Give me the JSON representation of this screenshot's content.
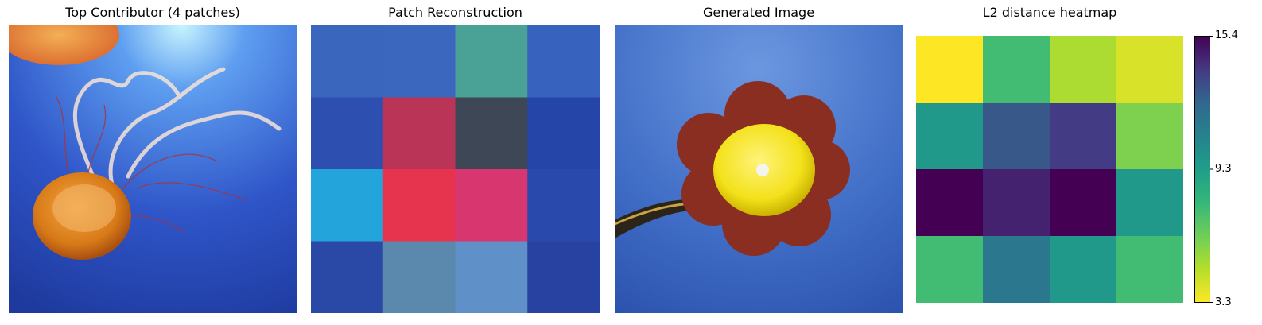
{
  "panels": [
    {
      "title": "Top Contributor (4 patches)"
    },
    {
      "title": "Patch Reconstruction"
    },
    {
      "title": "Generated Image"
    },
    {
      "title": "L2 distance heatmap"
    }
  ],
  "chart_data": {
    "type": "heatmap",
    "title": "L2 distance heatmap",
    "rows": 4,
    "cols": 4,
    "values": [
      [
        3.3,
        7.5,
        5.0,
        4.1
      ],
      [
        9.6,
        12.9,
        13.8,
        6.0
      ],
      [
        15.4,
        14.5,
        15.4,
        9.6
      ],
      [
        7.5,
        11.5,
        9.6,
        7.5
      ]
    ],
    "colorbar": {
      "min": 3.3,
      "max": 15.4,
      "ticks": [
        "15.4",
        "9.3",
        "3.3"
      ],
      "tick_values": [
        15.4,
        9.3,
        3.3
      ],
      "colormap": "viridis_r"
    }
  },
  "patch_grid": {
    "colors": [
      [
        "#3a66be",
        "#3b67bf",
        "#4aa297",
        "#3762bd"
      ],
      [
        "#2c4fb0",
        "#b93456",
        "#3e4756",
        "#2645a8"
      ],
      [
        "#23a5dc",
        "#e6344f",
        "#d8366f",
        "#2a49ad"
      ],
      [
        "#2a49a6",
        "#5b88ad",
        "#5f90c8",
        "#2742a1"
      ]
    ]
  }
}
